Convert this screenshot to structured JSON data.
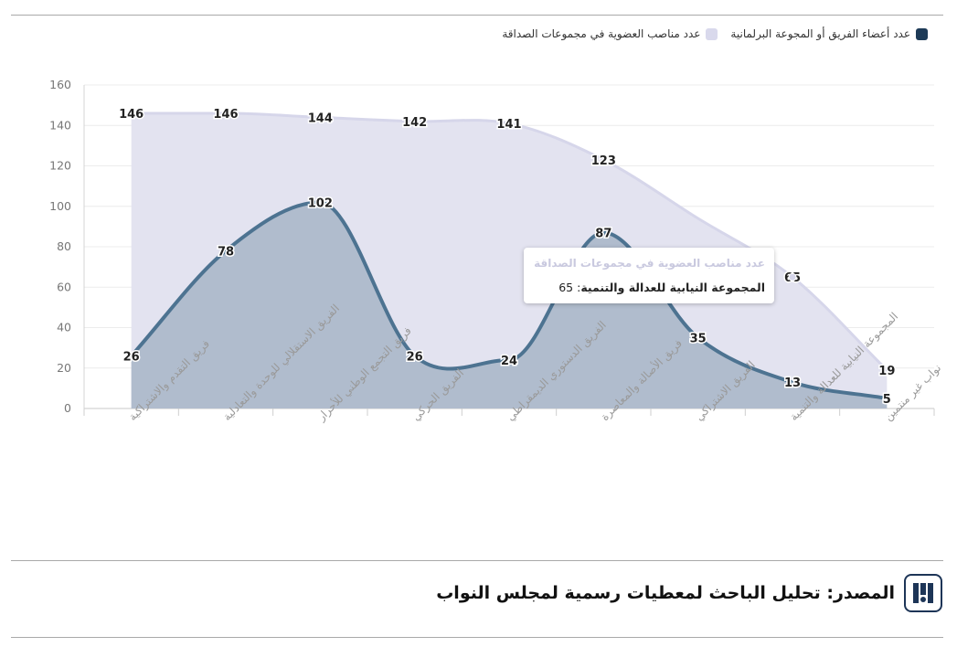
{
  "legend": {
    "items": [
      {
        "label": "عدد مناصب العضوية في مجموعات الصداقة",
        "color": "#d9d9ec"
      },
      {
        "label": "عدد أعضاء الفريق أو المجوعة البرلمانية",
        "color": "#1d3a57"
      }
    ]
  },
  "tooltip": {
    "title": "عدد مناصب العضوية في مجموعات الصداقة",
    "category": "المجموعة النيابية للعدالة والتنمية",
    "value": "65"
  },
  "source": {
    "text": "المصدر: تحليل الباحث لمعطيات رسمية لمجلس النواب"
  },
  "chart_data": {
    "type": "area",
    "categories": [
      "فريق التقدم والاشتراكية",
      "الفريق الاستقلالي للوحدة والتعادلية",
      "فريق التجمع الوطني للأحرار",
      "الفريق الحركي",
      "الفريق الدستوري الديمقراطي",
      "فريق الأصالة والمعاصرة",
      "الفريق الاشتراكي",
      "المجموعة النيابية للعدالة والتنمية",
      "نواب غير منتمين"
    ],
    "series": [
      {
        "name": "عدد مناصب العضوية في مجموعات الصداقة",
        "color": "#e3e3f0",
        "stroke": "#d6d6ea",
        "values": [
          146,
          146,
          144,
          142,
          141,
          123,
          null,
          65,
          19
        ]
      },
      {
        "name": "عدد أعضاء الفريق أو المجوعة البرلمانية",
        "color": "#b0bccd",
        "stroke": "#4d7391",
        "values": [
          26,
          78,
          102,
          26,
          24,
          87,
          35,
          13,
          5
        ]
      }
    ],
    "yticks": [
      "0",
      "20",
      "40",
      "60",
      "80",
      "100",
      "120",
      "140",
      "160"
    ],
    "ylim": [
      0,
      160
    ],
    "grid": true,
    "legend_position": "top-right",
    "title": "",
    "xlabel": "",
    "ylabel": ""
  }
}
